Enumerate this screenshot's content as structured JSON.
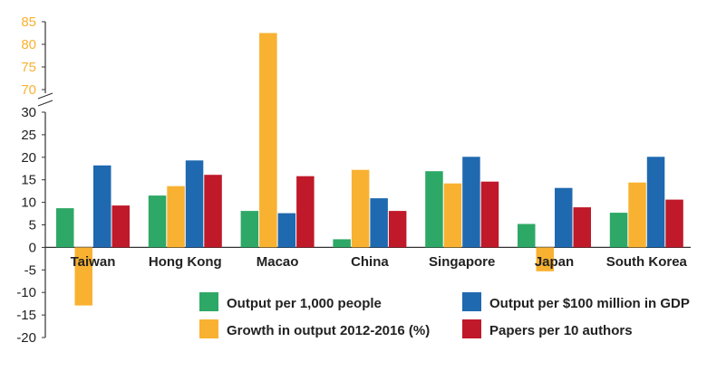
{
  "chart_data": {
    "type": "bar",
    "categories": [
      "Taiwan",
      "Hong Kong",
      "Macao",
      "China",
      "Singapore",
      "Japan",
      "South Korea"
    ],
    "series": [
      {
        "name": "Output per 1,000 people",
        "color": "#2ea866",
        "values": [
          8.7,
          11.5,
          8.1,
          1.8,
          16.9,
          5.2,
          7.7
        ]
      },
      {
        "name": "Growth in output 2012-2016 (%)",
        "color": "#f9b131",
        "values": [
          -12.9,
          13.6,
          82.5,
          17.2,
          14.2,
          -5.3,
          14.4
        ]
      },
      {
        "name": "Output per $100 million in GDP",
        "color": "#1f69b0",
        "values": [
          18.2,
          19.3,
          7.6,
          10.9,
          20.1,
          13.2,
          20.1
        ]
      },
      {
        "name": "Papers per 10 authors",
        "color": "#c0192a",
        "values": [
          9.3,
          16.1,
          15.8,
          8.1,
          14.6,
          8.9,
          10.6
        ]
      }
    ],
    "y_axis_lower": {
      "range": [
        -20,
        30
      ],
      "ticks": [
        "-20",
        "-15",
        "-10",
        "-5",
        "0",
        "5",
        "10",
        "15",
        "20",
        "25",
        "30"
      ],
      "tick_color": "#222222"
    },
    "y_axis_upper": {
      "range": [
        70,
        85
      ],
      "ticks": [
        "70",
        "75",
        "80",
        "85"
      ],
      "tick_color": "#f9b131"
    },
    "axis_break": true,
    "grid": false,
    "legend_position": "bottom-right"
  }
}
